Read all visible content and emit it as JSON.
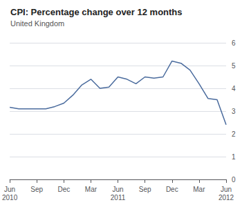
{
  "chart_data": {
    "type": "line",
    "title": "CPI: Percentage change over 12 months",
    "subtitle": "United Kingdom",
    "categories": [
      "Jun\n2010",
      null,
      null,
      "Sep",
      null,
      null,
      "Dec",
      null,
      null,
      "Mar",
      null,
      null,
      "Jun\n2011",
      null,
      null,
      "Sep",
      null,
      null,
      "Dec",
      null,
      null,
      "Mar",
      null,
      null,
      "Jun\n2012"
    ],
    "values": [
      3.17,
      3.1,
      3.1,
      3.1,
      3.1,
      3.2,
      3.35,
      3.7,
      4.15,
      4.4,
      4.0,
      4.05,
      4.5,
      4.4,
      4.2,
      4.5,
      4.45,
      4.5,
      5.2,
      5.1,
      4.8,
      4.2,
      3.55,
      3.5,
      2.4
    ],
    "color": "#4a6b9d",
    "ylim": [
      0,
      6
    ],
    "yticks": [
      0,
      1,
      2,
      3,
      4,
      5,
      6
    ],
    "grid": true
  }
}
